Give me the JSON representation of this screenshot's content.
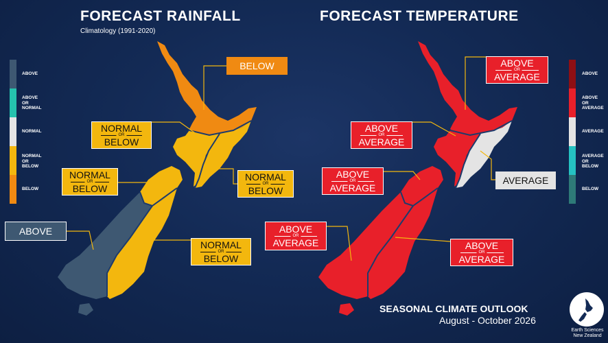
{
  "rainfall": {
    "title": "FORECAST RAINFALL",
    "subtitle": "Climatology (1991-2020)",
    "legend": [
      "ABOVE",
      "ABOVE\nOR\nNORMAL",
      "NORMAL",
      "NORMAL\nOR\nBELOW",
      "BELOW"
    ],
    "legend_colors": [
      "#3e5872",
      "#25c2ad",
      "#e4e4e4",
      "#f3b70e",
      "#f08a12"
    ],
    "regions": [
      {
        "name": "north-north-island",
        "outlook": "BELOW"
      },
      {
        "name": "west-north-island",
        "outlook_top": "NORMAL",
        "outlook_or": "OR",
        "outlook_bottom": "BELOW"
      },
      {
        "name": "east-north-island",
        "outlook_top": "NORMAL",
        "outlook_or": "OR",
        "outlook_bottom": "BELOW"
      },
      {
        "name": "north-south-island",
        "outlook_top": "NORMAL",
        "outlook_or": "OR",
        "outlook_bottom": "BELOW"
      },
      {
        "name": "west-south-island",
        "outlook": "ABOVE"
      },
      {
        "name": "east-south-island",
        "outlook_top": "NORMAL",
        "outlook_or": "OR",
        "outlook_bottom": "BELOW"
      }
    ]
  },
  "temperature": {
    "title": "FORECAST TEMPERATURE",
    "legend": [
      "ABOVE",
      "ABOVE\nOR\nAVERAGE",
      "AVERAGE",
      "AVERAGE\nOR\nBELOW",
      "BELOW"
    ],
    "legend_colors": [
      "#8e0f14",
      "#e8202a",
      "#e4e4e4",
      "#25c2c2",
      "#2e7a78"
    ],
    "regions": [
      {
        "name": "north-north-island",
        "outlook_top": "ABOVE",
        "outlook_or": "OR",
        "outlook_bottom": "AVERAGE"
      },
      {
        "name": "west-north-island",
        "outlook_top": "ABOVE",
        "outlook_or": "OR",
        "outlook_bottom": "AVERAGE"
      },
      {
        "name": "east-north-island",
        "outlook": "AVERAGE"
      },
      {
        "name": "north-south-island",
        "outlook_top": "ABOVE",
        "outlook_or": "OR",
        "outlook_bottom": "AVERAGE"
      },
      {
        "name": "west-south-island",
        "outlook_top": "ABOVE",
        "outlook_or": "OR",
        "outlook_bottom": "AVERAGE"
      },
      {
        "name": "east-south-island",
        "outlook_top": "ABOVE",
        "outlook_or": "OR",
        "outlook_bottom": "AVERAGE"
      }
    ]
  },
  "footer": {
    "title": "SEASONAL CLIMATE OUTLOOK",
    "period": "August - October 2026",
    "logo_text": "Earth Sciences\nNew Zealand"
  }
}
